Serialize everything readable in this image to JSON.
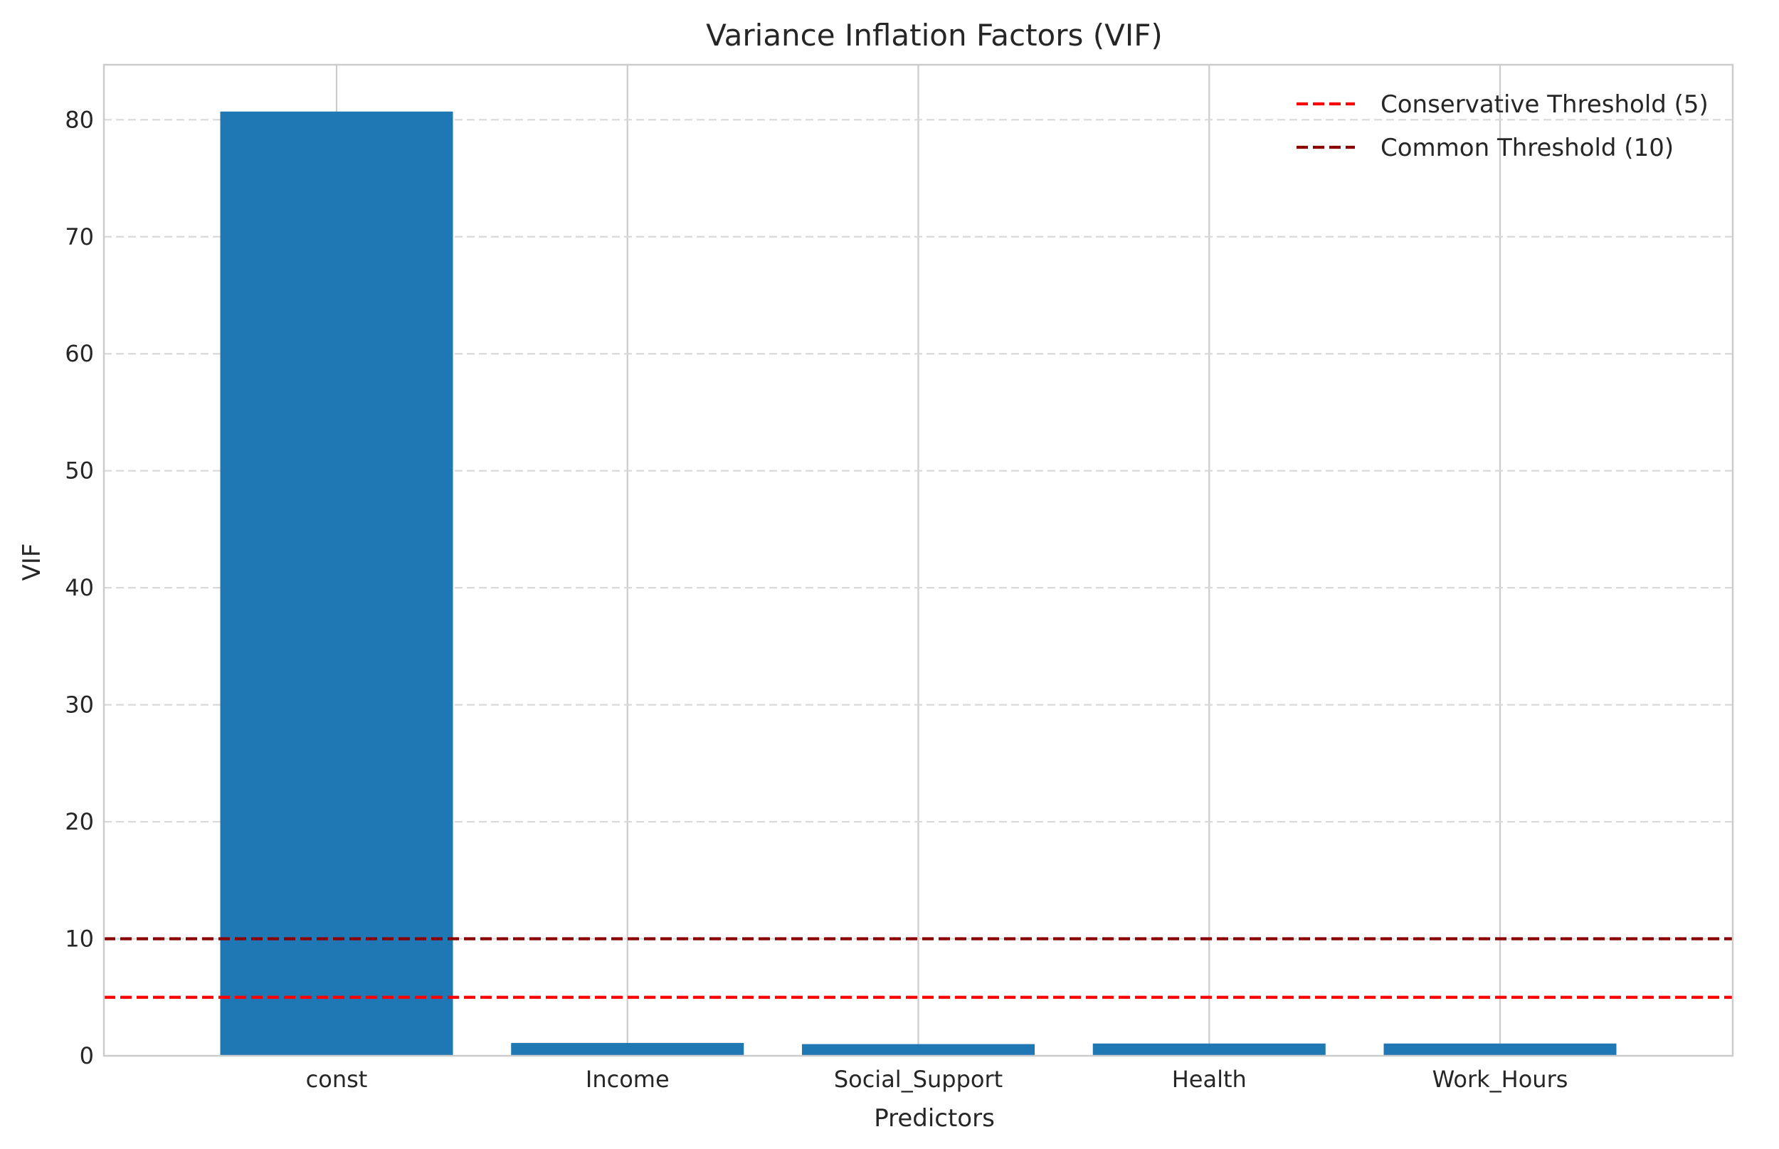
{
  "chart_data": {
    "type": "bar",
    "title": "Variance Inflation Factors (VIF)",
    "xlabel": "Predictors",
    "ylabel": "VIF",
    "categories": [
      "const",
      "Income",
      "Social_Support",
      "Health",
      "Work_Hours"
    ],
    "values": [
      80.7,
      1.1,
      1.0,
      1.05,
      1.05
    ],
    "ylim": [
      0,
      84.7
    ],
    "yticks": [
      0,
      10,
      20,
      30,
      40,
      50,
      60,
      70,
      80
    ],
    "ytick_labels": [
      "0",
      "10",
      "20",
      "30",
      "40",
      "50",
      "60",
      "70",
      "80"
    ],
    "bar_color": "#1f77b4",
    "grid": true,
    "legend_position": "top-right",
    "reference_lines": [
      {
        "label": "Conservative Threshold (5)",
        "value": 5,
        "color": "#ff0000",
        "style": "dashed"
      },
      {
        "label": "Common Threshold (10)",
        "value": 10,
        "color": "#8b0000",
        "style": "dashed"
      }
    ]
  }
}
